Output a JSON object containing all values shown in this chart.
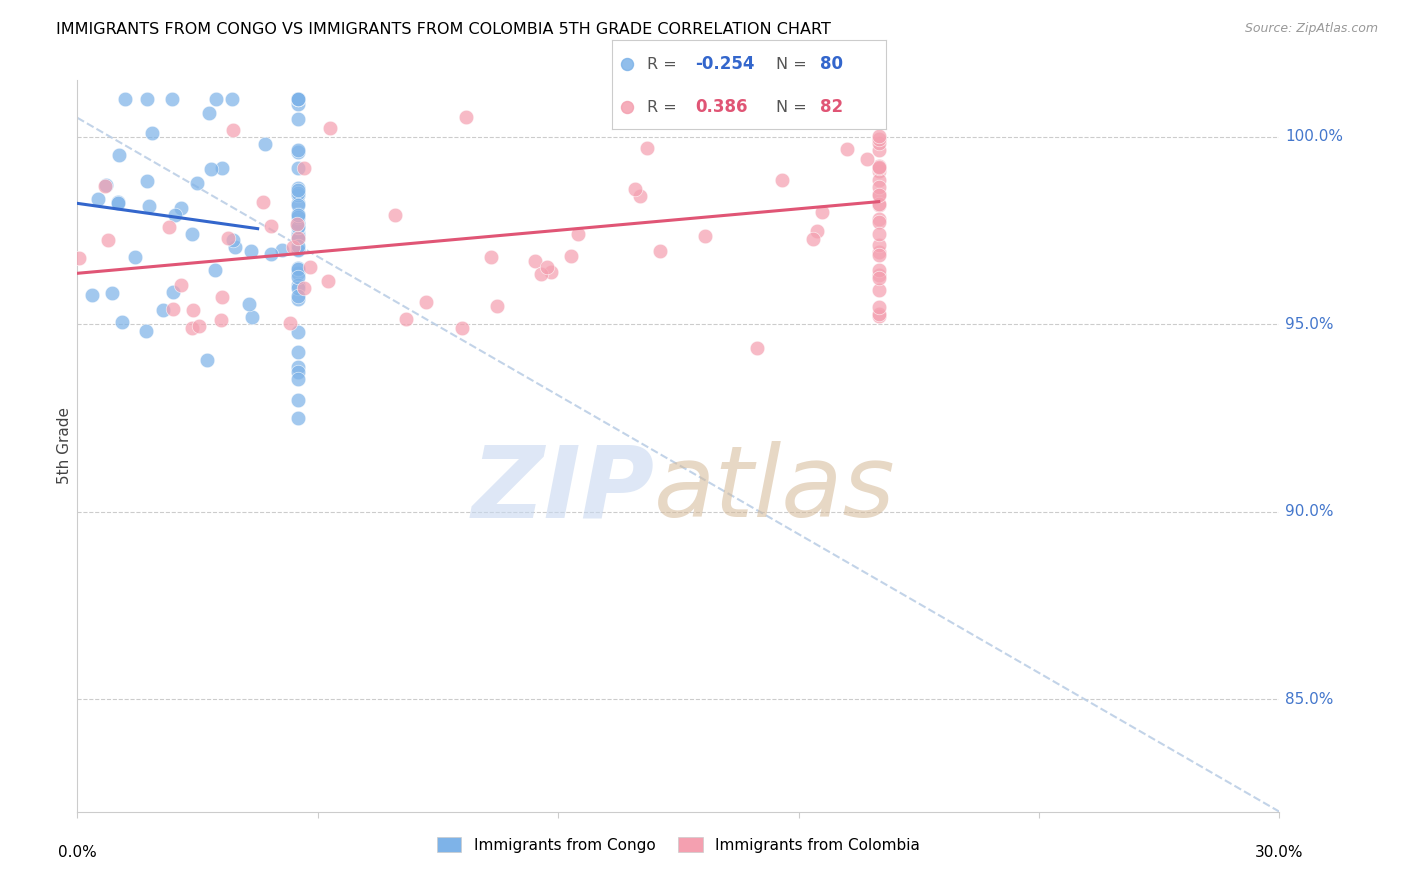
{
  "title": "IMMIGRANTS FROM CONGO VS IMMIGRANTS FROM COLOMBIA 5TH GRADE CORRELATION CHART",
  "source": "Source: ZipAtlas.com",
  "ylabel": "5th Grade",
  "xmin": 0.0,
  "xmax": 30.0,
  "ymin": 82.0,
  "ymax": 101.5,
  "congo_R": -0.254,
  "congo_N": 80,
  "colombia_R": 0.386,
  "colombia_N": 82,
  "congo_color": "#7eb3e8",
  "colombia_color": "#f4a0b0",
  "congo_line_color": "#3366cc",
  "colombia_line_color": "#e05575",
  "dash_line_color": "#b8cce4",
  "right_axis_color": "#4477cc",
  "grid_color": "#cccccc",
  "watermark_zip_color": "#c8d8f0",
  "watermark_atlas_color": "#d4b896",
  "right_yticks": [
    85.0,
    90.0,
    95.0,
    100.0
  ],
  "right_ytick_labels": [
    "85.0%",
    "90.0%",
    "95.0%",
    "100.0%"
  ]
}
